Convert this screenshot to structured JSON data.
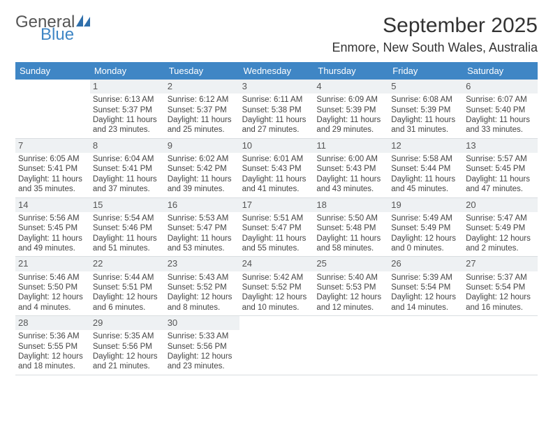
{
  "logo": {
    "top": "General",
    "bottom": "Blue",
    "icon_color": "#2f6fab"
  },
  "title": "September 2025",
  "location": "Enmore, New South Wales, Australia",
  "colors": {
    "header_bg": "#3f86c5",
    "header_text": "#ffffff",
    "daynum_bg": "#eef1f3",
    "rule": "#d9dde0",
    "text": "#444444"
  },
  "layout": {
    "columns": 7,
    "rows": 5,
    "start_weekday": 1
  },
  "weekdays": [
    "Sunday",
    "Monday",
    "Tuesday",
    "Wednesday",
    "Thursday",
    "Friday",
    "Saturday"
  ],
  "cells": [
    {
      "day": null
    },
    {
      "day": 1,
      "sunrise": "6:13 AM",
      "sunset": "5:37 PM",
      "daylight": "11 hours and 23 minutes."
    },
    {
      "day": 2,
      "sunrise": "6:12 AM",
      "sunset": "5:37 PM",
      "daylight": "11 hours and 25 minutes."
    },
    {
      "day": 3,
      "sunrise": "6:11 AM",
      "sunset": "5:38 PM",
      "daylight": "11 hours and 27 minutes."
    },
    {
      "day": 4,
      "sunrise": "6:09 AM",
      "sunset": "5:39 PM",
      "daylight": "11 hours and 29 minutes."
    },
    {
      "day": 5,
      "sunrise": "6:08 AM",
      "sunset": "5:39 PM",
      "daylight": "11 hours and 31 minutes."
    },
    {
      "day": 6,
      "sunrise": "6:07 AM",
      "sunset": "5:40 PM",
      "daylight": "11 hours and 33 minutes."
    },
    {
      "day": 7,
      "sunrise": "6:05 AM",
      "sunset": "5:41 PM",
      "daylight": "11 hours and 35 minutes."
    },
    {
      "day": 8,
      "sunrise": "6:04 AM",
      "sunset": "5:41 PM",
      "daylight": "11 hours and 37 minutes."
    },
    {
      "day": 9,
      "sunrise": "6:02 AM",
      "sunset": "5:42 PM",
      "daylight": "11 hours and 39 minutes."
    },
    {
      "day": 10,
      "sunrise": "6:01 AM",
      "sunset": "5:43 PM",
      "daylight": "11 hours and 41 minutes."
    },
    {
      "day": 11,
      "sunrise": "6:00 AM",
      "sunset": "5:43 PM",
      "daylight": "11 hours and 43 minutes."
    },
    {
      "day": 12,
      "sunrise": "5:58 AM",
      "sunset": "5:44 PM",
      "daylight": "11 hours and 45 minutes."
    },
    {
      "day": 13,
      "sunrise": "5:57 AM",
      "sunset": "5:45 PM",
      "daylight": "11 hours and 47 minutes."
    },
    {
      "day": 14,
      "sunrise": "5:56 AM",
      "sunset": "5:45 PM",
      "daylight": "11 hours and 49 minutes."
    },
    {
      "day": 15,
      "sunrise": "5:54 AM",
      "sunset": "5:46 PM",
      "daylight": "11 hours and 51 minutes."
    },
    {
      "day": 16,
      "sunrise": "5:53 AM",
      "sunset": "5:47 PM",
      "daylight": "11 hours and 53 minutes."
    },
    {
      "day": 17,
      "sunrise": "5:51 AM",
      "sunset": "5:47 PM",
      "daylight": "11 hours and 55 minutes."
    },
    {
      "day": 18,
      "sunrise": "5:50 AM",
      "sunset": "5:48 PM",
      "daylight": "11 hours and 58 minutes."
    },
    {
      "day": 19,
      "sunrise": "5:49 AM",
      "sunset": "5:49 PM",
      "daylight": "12 hours and 0 minutes."
    },
    {
      "day": 20,
      "sunrise": "5:47 AM",
      "sunset": "5:49 PM",
      "daylight": "12 hours and 2 minutes."
    },
    {
      "day": 21,
      "sunrise": "5:46 AM",
      "sunset": "5:50 PM",
      "daylight": "12 hours and 4 minutes."
    },
    {
      "day": 22,
      "sunrise": "5:44 AM",
      "sunset": "5:51 PM",
      "daylight": "12 hours and 6 minutes."
    },
    {
      "day": 23,
      "sunrise": "5:43 AM",
      "sunset": "5:52 PM",
      "daylight": "12 hours and 8 minutes."
    },
    {
      "day": 24,
      "sunrise": "5:42 AM",
      "sunset": "5:52 PM",
      "daylight": "12 hours and 10 minutes."
    },
    {
      "day": 25,
      "sunrise": "5:40 AM",
      "sunset": "5:53 PM",
      "daylight": "12 hours and 12 minutes."
    },
    {
      "day": 26,
      "sunrise": "5:39 AM",
      "sunset": "5:54 PM",
      "daylight": "12 hours and 14 minutes."
    },
    {
      "day": 27,
      "sunrise": "5:37 AM",
      "sunset": "5:54 PM",
      "daylight": "12 hours and 16 minutes."
    },
    {
      "day": 28,
      "sunrise": "5:36 AM",
      "sunset": "5:55 PM",
      "daylight": "12 hours and 18 minutes."
    },
    {
      "day": 29,
      "sunrise": "5:35 AM",
      "sunset": "5:56 PM",
      "daylight": "12 hours and 21 minutes."
    },
    {
      "day": 30,
      "sunrise": "5:33 AM",
      "sunset": "5:56 PM",
      "daylight": "12 hours and 23 minutes."
    },
    {
      "day": null
    },
    {
      "day": null
    },
    {
      "day": null
    },
    {
      "day": null
    }
  ],
  "labels": {
    "sunrise": "Sunrise:",
    "sunset": "Sunset:",
    "daylight": "Daylight:"
  }
}
